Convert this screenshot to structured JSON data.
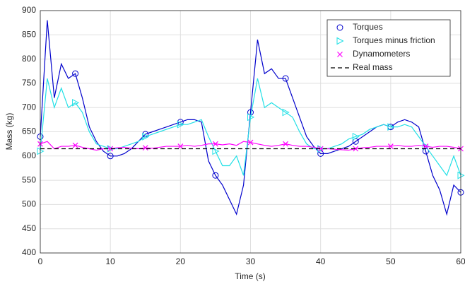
{
  "chart_data": {
    "type": "line",
    "xlabel": "Time (s)",
    "ylabel": "Mass (kg)",
    "x": [
      0,
      1,
      2,
      3,
      4,
      5,
      6,
      7,
      8,
      9,
      10,
      11,
      12,
      13,
      14,
      15,
      16,
      17,
      18,
      19,
      20,
      21,
      22,
      23,
      24,
      25,
      26,
      27,
      28,
      29,
      30,
      31,
      32,
      33,
      34,
      35,
      36,
      37,
      38,
      39,
      40,
      41,
      42,
      43,
      44,
      45,
      46,
      47,
      48,
      49,
      50,
      51,
      52,
      53,
      54,
      55,
      56,
      57,
      58,
      59,
      60
    ],
    "series": [
      {
        "name": "Torques",
        "color": "#0000cc",
        "marker": "o",
        "linestyle": "solid",
        "values": [
          640,
          880,
          720,
          790,
          760,
          770,
          720,
          660,
          630,
          610,
          600,
          600,
          605,
          615,
          630,
          645,
          650,
          655,
          660,
          665,
          670,
          675,
          675,
          670,
          590,
          560,
          540,
          510,
          480,
          540,
          690,
          840,
          770,
          780,
          760,
          760,
          720,
          680,
          640,
          620,
          605,
          605,
          610,
          615,
          620,
          630,
          640,
          650,
          660,
          665,
          660,
          670,
          675,
          670,
          660,
          610,
          560,
          530,
          480,
          540,
          525
        ]
      },
      {
        "name": "Torques minus friction",
        "color": "#22e0e6",
        "marker": ">",
        "linestyle": "solid",
        "values": [
          610,
          760,
          700,
          740,
          700,
          710,
          690,
          650,
          625,
          620,
          615,
          615,
          620,
          625,
          630,
          640,
          645,
          650,
          655,
          660,
          665,
          665,
          670,
          675,
          640,
          610,
          580,
          580,
          600,
          560,
          680,
          760,
          700,
          710,
          700,
          690,
          680,
          650,
          625,
          615,
          615,
          615,
          620,
          625,
          635,
          640,
          645,
          655,
          660,
          665,
          660,
          660,
          665,
          660,
          640,
          620,
          600,
          580,
          560,
          600,
          560
        ]
      },
      {
        "name": "Dynamometers",
        "color": "#ff00ff",
        "marker": "x",
        "linestyle": "solid",
        "values": [
          625,
          630,
          615,
          620,
          620,
          622,
          618,
          615,
          612,
          615,
          615,
          617,
          618,
          616,
          615,
          617,
          616,
          618,
          620,
          620,
          620,
          622,
          620,
          622,
          625,
          625,
          623,
          625,
          622,
          630,
          628,
          625,
          622,
          620,
          622,
          625,
          622,
          620,
          620,
          618,
          615,
          615,
          614,
          613,
          612,
          615,
          617,
          618,
          620,
          620,
          620,
          622,
          620,
          620,
          622,
          620,
          618,
          620,
          620,
          618,
          615
        ]
      },
      {
        "name": "Real mass",
        "color": "#000000",
        "marker": null,
        "linestyle": "dashed",
        "x": [
          0,
          60
        ],
        "values": [
          615,
          615
        ]
      }
    ],
    "xlim": [
      0,
      60
    ],
    "xticks": [
      0,
      10,
      20,
      30,
      40,
      50,
      60
    ],
    "ylim": [
      400,
      900
    ],
    "yticks": [
      400,
      450,
      500,
      550,
      600,
      650,
      700,
      750,
      800,
      850,
      900
    ],
    "grid": true,
    "legend": "northeast",
    "marker_every": 5
  }
}
